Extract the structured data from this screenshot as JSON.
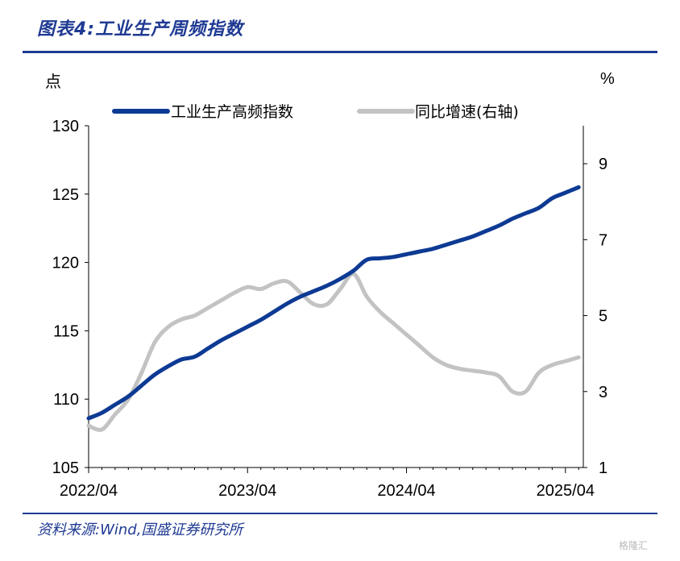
{
  "header": {
    "title": "图表4:工业生产周频指数"
  },
  "footer": {
    "source": "资料来源:Wind,国盛证券研究所",
    "watermark": "格隆汇"
  },
  "chart_data": {
    "type": "line",
    "title": "",
    "ylabel_left": "点",
    "ylabel_right": "%",
    "x_ticks": [
      "2022/04",
      "2023/04",
      "2024/04",
      "2025/04"
    ],
    "ylim_left": [
      105,
      130
    ],
    "yticks_left": [
      105,
      110,
      115,
      120,
      125,
      130
    ],
    "ylim_right": [
      1,
      10
    ],
    "yticks_right": [
      1,
      3,
      5,
      7,
      9
    ],
    "legend_position": "top",
    "grid": false,
    "colors": {
      "index": "#0d3a93",
      "yoy": "#c3c3c3"
    },
    "series": [
      {
        "name": "工业生产高频指数",
        "axis": "left",
        "x": [
          "2022/04",
          "2022/05",
          "2022/06",
          "2022/07",
          "2022/08",
          "2022/09",
          "2022/10",
          "2022/11",
          "2022/12",
          "2023/01",
          "2023/02",
          "2023/03",
          "2023/04",
          "2023/05",
          "2023/06",
          "2023/07",
          "2023/08",
          "2023/09",
          "2023/10",
          "2023/11",
          "2023/12",
          "2024/01",
          "2024/02",
          "2024/03",
          "2024/04",
          "2024/05",
          "2024/06",
          "2024/07",
          "2024/08",
          "2024/09",
          "2024/10",
          "2024/11",
          "2024/12",
          "2025/01",
          "2025/02",
          "2025/03",
          "2025/04",
          "2025/05"
        ],
        "y": [
          108.6,
          109.0,
          109.6,
          110.2,
          111.0,
          111.8,
          112.4,
          112.9,
          113.1,
          113.7,
          114.3,
          114.8,
          115.3,
          115.8,
          116.4,
          117.0,
          117.5,
          117.9,
          118.3,
          118.8,
          119.4,
          120.2,
          120.3,
          120.4,
          120.6,
          120.8,
          121.0,
          121.3,
          121.6,
          121.9,
          122.3,
          122.7,
          123.2,
          123.6,
          124.0,
          124.7,
          125.1,
          125.5
        ]
      },
      {
        "name": "同比增速(右轴)",
        "axis": "right",
        "x": [
          "2022/04",
          "2022/05",
          "2022/06",
          "2022/07",
          "2022/08",
          "2022/09",
          "2022/10",
          "2022/11",
          "2022/12",
          "2023/01",
          "2023/02",
          "2023/03",
          "2023/04",
          "2023/05",
          "2023/06",
          "2023/07",
          "2023/08",
          "2023/09",
          "2023/10",
          "2023/11",
          "2023/12",
          "2024/01",
          "2024/02",
          "2024/03",
          "2024/04",
          "2024/05",
          "2024/06",
          "2024/07",
          "2024/08",
          "2024/09",
          "2024/10",
          "2024/11",
          "2024/12",
          "2025/01",
          "2025/02",
          "2025/03",
          "2025/04",
          "2025/05"
        ],
        "y": [
          2.1,
          2.0,
          2.4,
          2.8,
          3.5,
          4.3,
          4.7,
          4.9,
          5.0,
          5.2,
          5.4,
          5.6,
          5.75,
          5.7,
          5.85,
          5.9,
          5.6,
          5.3,
          5.3,
          5.7,
          6.1,
          5.5,
          5.1,
          4.8,
          4.5,
          4.2,
          3.9,
          3.7,
          3.6,
          3.55,
          3.5,
          3.4,
          3.0,
          3.0,
          3.5,
          3.7,
          3.8,
          3.9
        ]
      }
    ]
  }
}
